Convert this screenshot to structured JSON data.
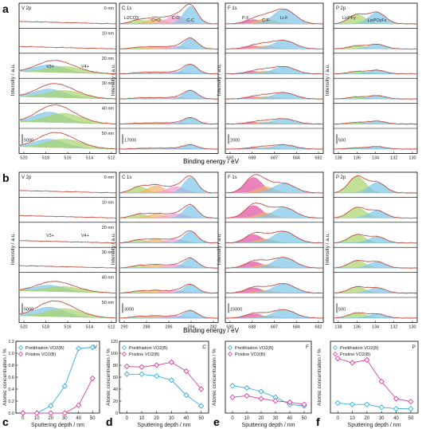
{
  "panel_letters": [
    "a",
    "b",
    "c",
    "d",
    "e",
    "f"
  ],
  "shared_xlabel": "Binding energy / eV",
  "chart_data": [
    {
      "type": "line",
      "panel": "a",
      "row_ylabel": "Intensity / a.u.",
      "columns": [
        {
          "title": "V 2p",
          "depth_labels": [
            "0 nm",
            "10 nm",
            "20 nm",
            "30 nm",
            "40 nm",
            "50 nm"
          ],
          "peak_labels": [
            "V3+",
            "V4+"
          ],
          "scale_label": "5000",
          "xlim": [
            520,
            511
          ],
          "xticks": [
            "520",
            "518",
            "516",
            "514",
            "512"
          ],
          "peaks": [
            {
              "center": 517.2,
              "width": 1.4,
              "amps": [
                0,
                0,
                0.35,
                0.4,
                0.5,
                0.4
              ],
              "color": "#7cc4e8"
            },
            {
              "center": 515.8,
              "width": 1.6,
              "amps": [
                0,
                0,
                0.3,
                0.35,
                0.45,
                0.42
              ],
              "color": "#a9d36b"
            }
          ]
        },
        {
          "title": "C 1s",
          "depth_labels": [],
          "peak_labels": [
            "Li2CO3",
            "C=O",
            "C-O",
            "C-C"
          ],
          "scale_label": "17000",
          "xlim": [
            292,
            282
          ],
          "xticks": [],
          "peaks": [
            {
              "center": 290.0,
              "width": 0.8,
              "amps": [
                0.2,
                0.08,
                0.06,
                0.05,
                0.04,
                0.03
              ],
              "color": "#a9d36b"
            },
            {
              "center": 288.3,
              "width": 0.8,
              "amps": [
                0.28,
                0.1,
                0.08,
                0.06,
                0.05,
                0.04
              ],
              "color": "#f2b36a"
            },
            {
              "center": 286.3,
              "width": 0.9,
              "amps": [
                0.4,
                0.12,
                0.1,
                0.08,
                0.06,
                0.05
              ],
              "color": "#f29bd0"
            },
            {
              "center": 284.8,
              "width": 0.7,
              "amps": [
                0.85,
                0.5,
                0.45,
                0.4,
                0.3,
                0.2
              ],
              "color": "#7cc4e8"
            }
          ]
        },
        {
          "title": "F 1s",
          "depth_labels": [],
          "peak_labels": [
            "P-F",
            "C-F",
            "Li-F"
          ],
          "scale_label": "2000",
          "xlim": [
            690,
            682
          ],
          "xticks": [
            "690",
            "688",
            "687",
            "684",
            "682"
          ],
          "peaks": [
            {
              "center": 687.7,
              "width": 0.7,
              "amps": [
                0.2,
                0.14,
                0.12,
                0.1,
                0.08,
                0.06
              ],
              "color": "#e04fa0"
            },
            {
              "center": 686.7,
              "width": 0.7,
              "amps": [
                0.25,
                0.16,
                0.14,
                0.12,
                0.1,
                0.08
              ],
              "color": "#f2b36a"
            },
            {
              "center": 685.2,
              "width": 0.9,
              "amps": [
                0.7,
                0.4,
                0.35,
                0.3,
                0.25,
                0.2
              ],
              "color": "#7cc4e8"
            }
          ]
        },
        {
          "title": "P 2p",
          "depth_labels": [],
          "peak_labels": [
            "LixPFy",
            "LixPOyFz"
          ],
          "scale_label": "500",
          "xlim": [
            139,
            129
          ],
          "xticks": [
            "138",
            "136",
            "134",
            "132",
            "130"
          ],
          "peaks": [
            {
              "center": 136.2,
              "width": 1.0,
              "amps": [
                0.45,
                0.15,
                0.12,
                0.1,
                0.08,
                0.06
              ],
              "color": "#a9d36b"
            },
            {
              "center": 133.8,
              "width": 1.0,
              "amps": [
                0.55,
                0.22,
                0.18,
                0.16,
                0.14,
                0.12
              ],
              "color": "#7cc4e8"
            }
          ]
        }
      ]
    },
    {
      "type": "line",
      "panel": "b",
      "row_ylabel": "Intensity / a.u.",
      "columns": [
        {
          "title": "V 2p",
          "depth_labels": [
            "0 nm",
            "10 nm",
            "20 nm",
            "30 nm",
            "40 nm",
            "50 nm"
          ],
          "peak_labels": [
            "V3+",
            "V4+"
          ],
          "scale_label": "5000",
          "xlim": [
            520,
            511
          ],
          "xticks": [
            "520",
            "518",
            "516",
            "514",
            "512"
          ],
          "peaks": [
            {
              "center": 517.2,
              "width": 1.4,
              "amps": [
                0,
                0,
                0,
                0,
                0.3,
                0.45
              ],
              "color": "#7cc4e8"
            },
            {
              "center": 515.8,
              "width": 1.6,
              "amps": [
                0,
                0,
                0,
                0,
                0.25,
                0.4
              ],
              "color": "#a9d36b"
            }
          ]
        },
        {
          "title": "C 1s",
          "depth_labels": [],
          "peak_labels": [],
          "scale_label": "3000",
          "xlim": [
            292,
            282
          ],
          "xticks": [
            "290",
            "288",
            "286",
            "284",
            "282"
          ],
          "peaks": [
            {
              "center": 290.0,
              "width": 0.8,
              "amps": [
                0.3,
                0.18,
                0.15,
                0.12,
                0.1,
                0.08
              ],
              "color": "#a9d36b"
            },
            {
              "center": 288.3,
              "width": 0.8,
              "amps": [
                0.35,
                0.2,
                0.18,
                0.15,
                0.12,
                0.1
              ],
              "color": "#f2b36a"
            },
            {
              "center": 286.3,
              "width": 0.9,
              "amps": [
                0.3,
                0.2,
                0.18,
                0.15,
                0.12,
                0.1
              ],
              "color": "#f29bd0"
            },
            {
              "center": 284.8,
              "width": 0.7,
              "amps": [
                0.75,
                0.6,
                0.55,
                0.45,
                0.4,
                0.35
              ],
              "color": "#7cc4e8"
            }
          ]
        },
        {
          "title": "F 1s",
          "depth_labels": [],
          "peak_labels": [],
          "scale_label": "15000",
          "xlim": [
            690,
            682
          ],
          "xticks": [
            "690",
            "688",
            "687",
            "684",
            "682"
          ],
          "peaks": [
            {
              "center": 687.7,
              "width": 0.7,
              "amps": [
                0.75,
                0.6,
                0.4,
                0.3,
                0.25,
                0.2
              ],
              "color": "#e04fa0"
            },
            {
              "center": 686.7,
              "width": 0.7,
              "amps": [
                0.3,
                0.25,
                0.2,
                0.16,
                0.12,
                0.1
              ],
              "color": "#f2b36a"
            },
            {
              "center": 685.2,
              "width": 0.9,
              "amps": [
                0.45,
                0.5,
                0.55,
                0.5,
                0.45,
                0.4
              ],
              "color": "#7cc4e8"
            }
          ]
        },
        {
          "title": "P 2p",
          "depth_labels": [],
          "peak_labels": [],
          "scale_label": "500",
          "xlim": [
            139,
            129
          ],
          "xticks": [
            "138",
            "136",
            "134",
            "132",
            "130"
          ],
          "peaks": [
            {
              "center": 136.2,
              "width": 1.0,
              "amps": [
                0.8,
                0.5,
                0.4,
                0.35,
                0.3,
                0.25
              ],
              "color": "#a9d36b"
            },
            {
              "center": 133.8,
              "width": 1.0,
              "amps": [
                0.5,
                0.35,
                0.3,
                0.3,
                0.25,
                0.2
              ],
              "color": "#7cc4e8"
            }
          ]
        }
      ]
    },
    {
      "type": "line",
      "panel": "c",
      "corner_label": "V",
      "xlabel": "Sputtering depth / nm",
      "ylabel": "Atomic concentration / %",
      "x": [
        0,
        10,
        20,
        30,
        40,
        50
      ],
      "xlim": [
        -5,
        55
      ],
      "ylim": [
        0,
        1.2
      ],
      "xticks": [
        "0",
        "10",
        "20",
        "30",
        "40",
        "50"
      ],
      "yticks": [
        "0.0",
        "0.2",
        "0.4",
        "0.6",
        "0.8",
        "1.0",
        "1.2"
      ],
      "series": [
        {
          "name": "Prelithiation VO2(B)",
          "values": [
            0,
            0,
            0.12,
            0.45,
            1.08,
            1.1
          ],
          "color": "#3aaee0",
          "marker": "diamond"
        },
        {
          "name": "Pristine VO2(B)",
          "values": [
            0,
            0,
            0,
            0,
            0.13,
            0.58
          ],
          "color": "#e0409f",
          "marker": "diamond"
        }
      ]
    },
    {
      "type": "line",
      "panel": "d",
      "corner_label": "C",
      "xlabel": "Sputtering depth / nm",
      "ylabel": "Atomic concentration / %",
      "x": [
        0,
        10,
        20,
        30,
        40,
        50
      ],
      "xlim": [
        -5,
        55
      ],
      "ylim": [
        0,
        120
      ],
      "xticks": [
        "0",
        "10",
        "20",
        "30",
        "40",
        "50"
      ],
      "yticks": [
        "0",
        "20",
        "40",
        "60",
        "80",
        "100",
        "120"
      ],
      "series": [
        {
          "name": "Prelithiation VO2(B)",
          "values": [
            65,
            65,
            62,
            55,
            30,
            12
          ],
          "color": "#3aaee0",
          "marker": "diamond"
        },
        {
          "name": "Pristine VO2(B)",
          "values": [
            78,
            77,
            80,
            85,
            70,
            40
          ],
          "color": "#e0409f",
          "marker": "diamond"
        }
      ]
    },
    {
      "type": "line",
      "panel": "e",
      "corner_label": "F",
      "xlabel": "Sputtering depth / nm",
      "ylabel": "Atomic concentration / %",
      "x": [
        0,
        10,
        20,
        30,
        40,
        50
      ],
      "xlim": [
        -5,
        55
      ],
      "ylim": [
        0,
        100
      ],
      "xticks": [
        "0",
        "10",
        "20",
        "30",
        "40",
        "50"
      ],
      "yticks": [],
      "series": [
        {
          "name": "Prelithiation VO2(B)",
          "values": [
            38,
            35,
            30,
            22,
            12,
            10
          ],
          "color": "#3aaee0",
          "marker": "diamond"
        },
        {
          "name": "Pristine VO2(B)",
          "values": [
            22,
            24,
            20,
            17,
            15,
            12
          ],
          "color": "#e0409f",
          "marker": "diamond"
        }
      ]
    },
    {
      "type": "line",
      "panel": "f",
      "corner_label": "P",
      "xlabel": "Sputtering depth / nm",
      "ylabel": "Atomic concentration / %",
      "x": [
        0,
        10,
        20,
        30,
        40,
        50
      ],
      "xlim": [
        -5,
        55
      ],
      "ylim": [
        0,
        25
      ],
      "xticks": [
        "0",
        "10",
        "20",
        "30",
        "40",
        "50"
      ],
      "yticks": [],
      "series": [
        {
          "name": "Prelithiation VO2(B)",
          "values": [
            3.5,
            3,
            3,
            2,
            1.5,
            1.5
          ],
          "color": "#3aaee0",
          "marker": "diamond"
        },
        {
          "name": "Pristine VO2(B)",
          "values": [
            19,
            17.5,
            18.5,
            11,
            5,
            4
          ],
          "color": "#e0409f",
          "marker": "diamond"
        }
      ]
    }
  ]
}
